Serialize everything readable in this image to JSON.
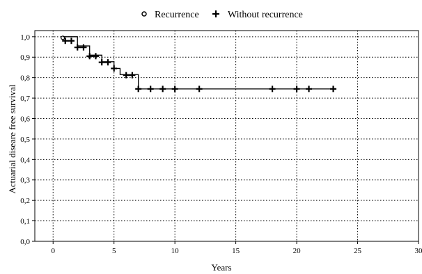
{
  "chart_data": {
    "type": "line",
    "xlabel": "Years",
    "ylabel": "Actuarial diseare free survival",
    "xlim": [
      -1.5,
      30
    ],
    "ylim": [
      0,
      1.03
    ],
    "x_ticks": [
      0,
      5,
      10,
      15,
      20,
      25,
      30
    ],
    "y_ticks": [
      "0,0",
      "0,1",
      "0,2",
      "0,3",
      "0,4",
      "0,5",
      "0,6",
      "0,7",
      "0,8",
      "0,9",
      "1,0"
    ],
    "grid": true,
    "legend_position": "top",
    "legend": [
      {
        "name": "Recurrence",
        "marker": "circle"
      },
      {
        "name": "Without recurrence",
        "marker": "plus"
      }
    ],
    "survival_step": {
      "x": [
        0.8,
        2.0,
        3.0,
        4.0,
        5.0,
        5.5,
        7.0,
        23.0
      ],
      "y": [
        1.0,
        0.955,
        0.91,
        0.878,
        0.845,
        0.815,
        0.745,
        0.745
      ]
    },
    "censored_points": {
      "name": "Without recurrence",
      "x": [
        1.0,
        1.5,
        2.0,
        2.5,
        3.0,
        3.5,
        4.0,
        4.5,
        5.0,
        6.0,
        6.5,
        7.0,
        8.0,
        9.0,
        10.0,
        12.0,
        18.0,
        20.0,
        21.0,
        23.0
      ],
      "y": [
        0.98,
        0.98,
        0.948,
        0.948,
        0.905,
        0.905,
        0.875,
        0.875,
        0.845,
        0.812,
        0.812,
        0.745,
        0.745,
        0.745,
        0.745,
        0.745,
        0.745,
        0.745,
        0.745,
        0.745
      ]
    },
    "recurrence_points": {
      "name": "Recurrence",
      "x": [
        0.8
      ],
      "y": [
        0.995
      ]
    }
  },
  "colors": {
    "line": "#000000",
    "grid": "#000000",
    "background": "#ffffff"
  }
}
